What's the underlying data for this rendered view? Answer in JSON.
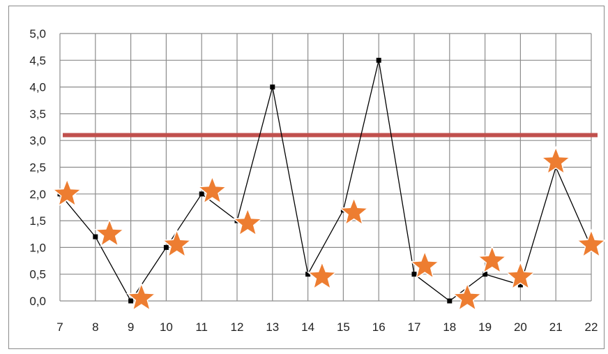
{
  "chart_data": {
    "type": "line",
    "x": [
      7,
      8,
      9,
      10,
      11,
      12,
      13,
      14,
      15,
      16,
      17,
      18,
      19,
      20,
      21,
      22
    ],
    "x_tick_labels": [
      "7",
      "8",
      "9",
      "10",
      "11",
      "12",
      "13",
      "14",
      "15",
      "16",
      "17",
      "18",
      "19",
      "20",
      "21",
      "22"
    ],
    "series": [
      {
        "values": [
          2.0,
          1.2,
          0.0,
          1.0,
          2.0,
          1.5,
          4.0,
          0.5,
          1.7,
          4.5,
          0.5,
          0.0,
          0.5,
          0.3,
          2.5,
          1.0
        ],
        "color": "#000000",
        "marker": "square"
      }
    ],
    "star_markers": {
      "color": "#ed7d31",
      "points": [
        {
          "x": 7.2,
          "y": 2.0
        },
        {
          "x": 8.4,
          "y": 1.25
        },
        {
          "x": 9.3,
          "y": 0.05
        },
        {
          "x": 10.3,
          "y": 1.05
        },
        {
          "x": 11.3,
          "y": 2.05
        },
        {
          "x": 12.3,
          "y": 1.45
        },
        {
          "x": 14.4,
          "y": 0.45
        },
        {
          "x": 15.3,
          "y": 1.65
        },
        {
          "x": 17.3,
          "y": 0.65
        },
        {
          "x": 18.5,
          "y": 0.05
        },
        {
          "x": 19.2,
          "y": 0.75
        },
        {
          "x": 20.0,
          "y": 0.45
        },
        {
          "x": 21.0,
          "y": 2.6
        },
        {
          "x": 22.0,
          "y": 1.05
        }
      ]
    },
    "threshold_line": {
      "y": 3.1,
      "color": "#c0504d"
    },
    "ylim": [
      0,
      5
    ],
    "y_ticks": [
      0,
      0.5,
      1,
      1.5,
      2,
      2.5,
      3,
      3.5,
      4,
      4.5,
      5
    ],
    "y_tick_labels": [
      "0,0",
      "0,5",
      "1,0",
      "1,5",
      "2,0",
      "2,5",
      "3,0",
      "3,5",
      "4,0",
      "4,5",
      "5,0"
    ],
    "grid": true,
    "title": "",
    "xlabel": "",
    "ylabel": ""
  }
}
